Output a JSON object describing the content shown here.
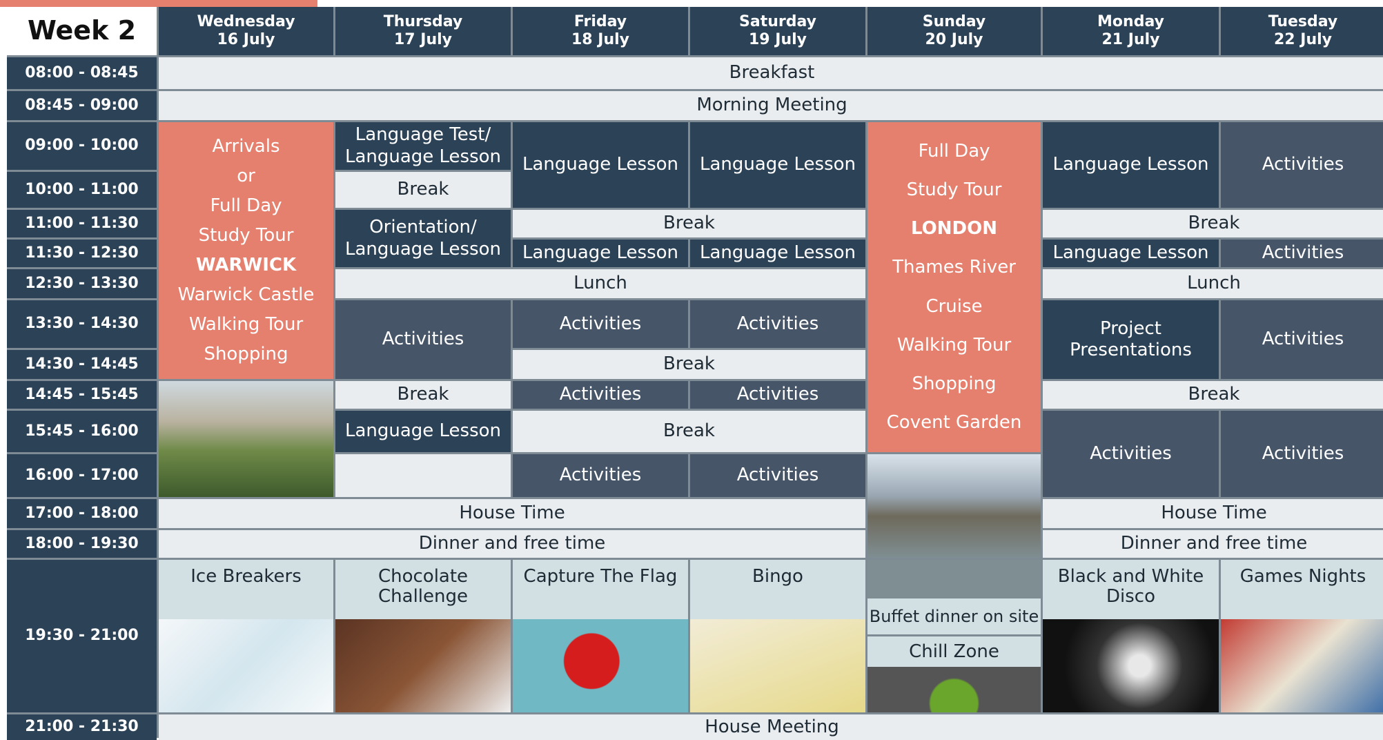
{
  "header": {
    "title": "Week 2"
  },
  "days": [
    {
      "day": "Wednesday",
      "date": "16 July"
    },
    {
      "day": "Thursday",
      "date": "17 July"
    },
    {
      "day": "Friday",
      "date": "18 July"
    },
    {
      "day": "Saturday",
      "date": "19 July"
    },
    {
      "day": "Sunday",
      "date": "20 July"
    },
    {
      "day": "Monday",
      "date": "21 July"
    },
    {
      "day": "Tuesday",
      "date": "22 July"
    }
  ],
  "times": [
    "08:00 - 08:45",
    "08:45 - 09:00",
    "09:00 - 10:00",
    "10:00 - 11:00",
    "11:00 - 11:30",
    "11:30 - 12:30",
    "12:30 - 13:30",
    "13:30 - 14:30",
    "14:30 - 14:45",
    "14:45 - 15:45",
    "15:45 - 16:00",
    "16:00 - 17:00",
    "17:00 - 18:00",
    "18:00 - 19:30",
    "19:30 - 21:00",
    "21:00 - 21:30"
  ],
  "blocks": [
    "Breakfast",
    "Morning Meeting",
    [
      "Arrivals",
      "or",
      "Full Day",
      "Study Tour",
      "WARWICK",
      "Warwick Castle",
      "Walking Tour",
      "Shopping"
    ],
    [
      "Language Test/",
      "Language Lesson"
    ],
    "Break",
    [
      "Orientation/",
      "Language Lesson"
    ],
    "Lunch",
    "Activities",
    "Break",
    "Language Lesson",
    "Language Lesson",
    "Language Lesson",
    "Break",
    "Language Lesson",
    "Language Lesson",
    "Activities",
    "Activities",
    "Break",
    "Activities",
    "Activities",
    "Break",
    "Activities",
    "Activities",
    [
      "Full Day",
      "Study Tour",
      "LONDON",
      "Thames River",
      "Cruise",
      "Walking Tour",
      "Shopping",
      "Covent Garden"
    ],
    "Language Lesson",
    "Activities",
    "Break",
    "Language Lesson",
    "Activities",
    "Lunch",
    [
      "Project",
      "Presentations"
    ],
    "Activities",
    "Break",
    "Activities",
    "Activities",
    "House Time",
    "House Time",
    "Dinner and free time",
    "Dinner and free time",
    "House Meeting"
  ],
  "evening": [
    [
      "Ice Breakers"
    ],
    [
      "Chocolate",
      "Challenge"
    ],
    [
      "Capture The Flag"
    ],
    [
      "Bingo"
    ],
    [
      "Buffet dinner on site",
      "Chill Zone"
    ],
    [
      "Black and White",
      "Disco"
    ],
    [
      "Games Nights"
    ]
  ]
}
